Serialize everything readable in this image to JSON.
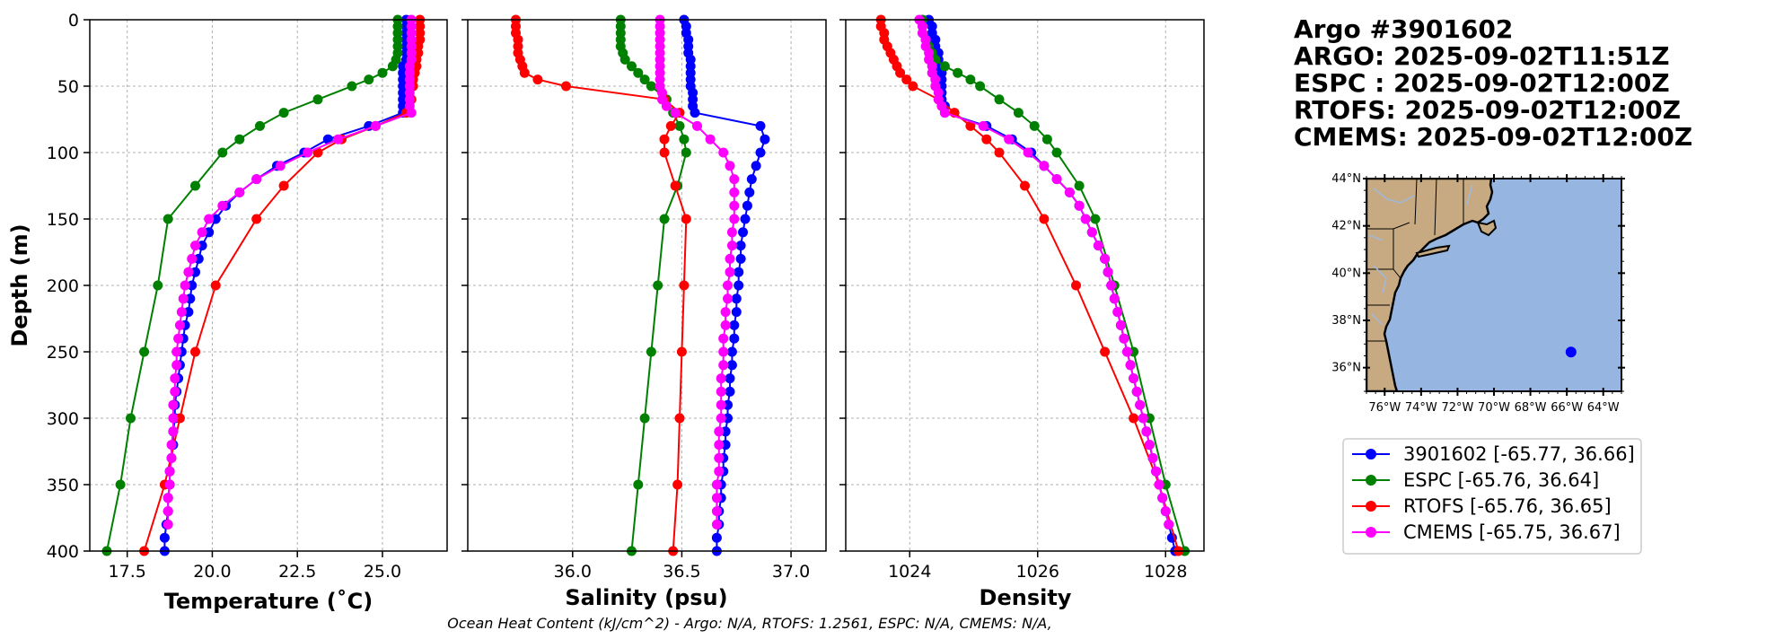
{
  "titles": {
    "line1": "Argo #3901602",
    "line2": "ARGO: 2025-09-02T11:51Z",
    "line3": "ESPC : 2025-09-02T12:00Z",
    "line4": "RTOFS: 2025-09-02T12:00Z",
    "line5": "CMEMS: 2025-09-02T12:00Z"
  },
  "footer": "Ocean Heat Content (kJ/cm^2) - Argo: N/A,  RTOFS: 1.2561,  ESPC: N/A,  CMEMS: N/A,",
  "legend": [
    {
      "label": "3901602 [-65.77, 36.66]",
      "color": "#0000ff"
    },
    {
      "label": "ESPC [-65.76, 36.64]",
      "color": "#008000"
    },
    {
      "label": "RTOFS [-65.76, 36.65]",
      "color": "#ff0000"
    },
    {
      "label": "CMEMS [-65.75, 36.67]",
      "color": "#ff00ff"
    }
  ],
  "map": {
    "lat_labels": [
      "44°N",
      "42°N",
      "40°N",
      "38°N",
      "36°N"
    ],
    "lon_labels": [
      "76°W",
      "74°W",
      "72°W",
      "70°W",
      "68°W",
      "66°W",
      "64°W"
    ],
    "lon_range": [
      -77,
      -63
    ],
    "lat_range": [
      35,
      44
    ],
    "point": {
      "lon": -65.77,
      "lat": 36.66
    },
    "ocean_color": "#96b5e1",
    "land_color": "#c8aa82"
  },
  "chart_data": [
    {
      "type": "line",
      "xlabel": "Temperature (˚C)",
      "ylabel": "Depth (m)",
      "xlim": [
        16.4,
        26.9
      ],
      "ylim": [
        400,
        0
      ],
      "xticks": [
        "17.5",
        "20.0",
        "22.5",
        "25.0"
      ],
      "yticks": [
        "0",
        "50",
        "100",
        "150",
        "200",
        "250",
        "300",
        "350",
        "400"
      ],
      "grid": true,
      "series": [
        {
          "name": "3901602",
          "color": "#0000ff",
          "depth": [
            0,
            5,
            10,
            15,
            20,
            25,
            30,
            35,
            40,
            45,
            50,
            55,
            60,
            65,
            70,
            80,
            90,
            100,
            110,
            120,
            130,
            140,
            150,
            160,
            170,
            180,
            190,
            200,
            210,
            220,
            230,
            240,
            250,
            260,
            270,
            280,
            290,
            300,
            310,
            320,
            330,
            340,
            350,
            360,
            370,
            380,
            390,
            400
          ],
          "values": [
            25.7,
            25.7,
            25.7,
            25.7,
            25.7,
            25.7,
            25.7,
            25.6,
            25.6,
            25.6,
            25.6,
            25.6,
            25.6,
            25.6,
            25.6,
            24.6,
            23.4,
            22.7,
            21.9,
            21.3,
            20.8,
            20.4,
            20.1,
            19.9,
            19.7,
            19.6,
            19.5,
            19.4,
            19.35,
            19.3,
            19.2,
            19.15,
            19.1,
            19.05,
            19.0,
            18.95,
            18.9,
            18.9,
            18.85,
            18.85,
            18.8,
            18.75,
            18.75,
            18.7,
            18.7,
            18.65,
            18.6,
            18.6
          ]
        },
        {
          "name": "ESPC",
          "color": "#008000",
          "depth": [
            0,
            5,
            10,
            15,
            20,
            25,
            30,
            35,
            40,
            45,
            50,
            60,
            70,
            80,
            90,
            100,
            125,
            150,
            200,
            250,
            300,
            350,
            400
          ],
          "values": [
            25.45,
            25.45,
            25.45,
            25.45,
            25.45,
            25.45,
            25.4,
            25.3,
            25.0,
            24.6,
            24.1,
            23.1,
            22.1,
            21.4,
            20.8,
            20.3,
            19.5,
            18.7,
            18.4,
            18.0,
            17.6,
            17.3,
            16.9
          ]
        },
        {
          "name": "RTOFS",
          "color": "#ff0000",
          "depth": [
            0,
            5,
            10,
            15,
            20,
            25,
            30,
            35,
            40,
            45,
            50,
            60,
            70,
            80,
            90,
            100,
            125,
            150,
            200,
            250,
            300,
            350,
            400
          ],
          "values": [
            26.1,
            26.1,
            26.1,
            26.1,
            26.05,
            26.05,
            26.0,
            26.0,
            25.95,
            25.9,
            25.9,
            25.85,
            25.7,
            24.8,
            23.8,
            23.1,
            22.1,
            21.3,
            20.1,
            19.5,
            19.05,
            18.6,
            18.0
          ]
        },
        {
          "name": "CMEMS",
          "color": "#ff00ff",
          "depth": [
            0,
            5,
            10,
            15,
            20,
            25,
            30,
            35,
            40,
            45,
            50,
            55,
            60,
            65,
            70,
            80,
            90,
            100,
            110,
            120,
            130,
            140,
            150,
            160,
            170,
            180,
            190,
            200,
            210,
            220,
            230,
            240,
            250,
            260,
            270,
            280,
            290,
            300,
            310,
            320,
            330,
            340,
            350,
            360,
            370,
            380
          ],
          "values": [
            25.85,
            25.85,
            25.85,
            25.85,
            25.85,
            25.85,
            25.85,
            25.8,
            25.8,
            25.8,
            25.8,
            25.8,
            25.8,
            25.8,
            25.85,
            24.8,
            23.7,
            22.8,
            22.0,
            21.3,
            20.8,
            20.3,
            19.9,
            19.7,
            19.5,
            19.4,
            19.3,
            19.2,
            19.15,
            19.1,
            19.05,
            19.0,
            18.95,
            18.95,
            18.9,
            18.9,
            18.85,
            18.85,
            18.85,
            18.8,
            18.8,
            18.75,
            18.75,
            18.7,
            18.7,
            18.7
          ]
        }
      ]
    },
    {
      "type": "line",
      "xlabel": "Salinity (psu)",
      "xlim": [
        35.52,
        37.16
      ],
      "ylim": [
        400,
        0
      ],
      "xticks": [
        "36.0",
        "36.5",
        "37.0"
      ],
      "grid": true,
      "series": [
        {
          "name": "3901602",
          "color": "#0000ff",
          "depth": [
            0,
            5,
            10,
            15,
            20,
            25,
            30,
            35,
            40,
            45,
            50,
            55,
            60,
            65,
            70,
            80,
            90,
            100,
            110,
            120,
            130,
            140,
            150,
            160,
            170,
            180,
            190,
            200,
            210,
            220,
            230,
            240,
            250,
            260,
            270,
            280,
            290,
            300,
            310,
            320,
            330,
            340,
            350,
            360,
            370,
            380,
            390,
            400
          ],
          "values": [
            36.51,
            36.52,
            36.52,
            36.53,
            36.53,
            36.53,
            36.54,
            36.54,
            36.54,
            36.54,
            36.54,
            36.55,
            36.55,
            36.55,
            36.56,
            36.86,
            36.88,
            36.86,
            36.84,
            36.82,
            36.81,
            36.8,
            36.79,
            36.78,
            36.77,
            36.77,
            36.76,
            36.76,
            36.75,
            36.75,
            36.74,
            36.74,
            36.73,
            36.73,
            36.72,
            36.72,
            36.71,
            36.71,
            36.7,
            36.7,
            36.69,
            36.69,
            36.68,
            36.68,
            36.67,
            36.67,
            36.66,
            36.66
          ]
        },
        {
          "name": "ESPC",
          "color": "#008000",
          "depth": [
            0,
            5,
            10,
            15,
            20,
            25,
            30,
            35,
            40,
            45,
            50,
            60,
            70,
            80,
            90,
            100,
            125,
            150,
            200,
            250,
            300,
            350,
            400
          ],
          "values": [
            36.22,
            36.22,
            36.22,
            36.22,
            36.22,
            36.23,
            36.24,
            36.27,
            36.3,
            36.33,
            36.36,
            36.43,
            36.46,
            36.49,
            36.51,
            36.52,
            36.48,
            36.42,
            36.39,
            36.36,
            36.33,
            36.3,
            36.27
          ]
        },
        {
          "name": "RTOFS",
          "color": "#ff0000",
          "depth": [
            0,
            5,
            10,
            15,
            20,
            25,
            30,
            35,
            40,
            45,
            50,
            60,
            70,
            80,
            90,
            100,
            125,
            150,
            200,
            250,
            300,
            350,
            400
          ],
          "values": [
            35.74,
            35.74,
            35.74,
            35.75,
            35.75,
            35.75,
            35.76,
            35.77,
            35.78,
            35.84,
            35.97,
            36.42,
            36.49,
            36.45,
            36.42,
            36.42,
            36.47,
            36.52,
            36.51,
            36.5,
            36.49,
            36.48,
            36.46
          ]
        },
        {
          "name": "CMEMS",
          "color": "#ff00ff",
          "depth": [
            0,
            5,
            10,
            15,
            20,
            25,
            30,
            35,
            40,
            45,
            50,
            55,
            60,
            65,
            70,
            80,
            90,
            100,
            110,
            120,
            130,
            140,
            150,
            160,
            170,
            180,
            190,
            200,
            210,
            220,
            230,
            240,
            250,
            260,
            270,
            280,
            290,
            300,
            310,
            320,
            330,
            340,
            350,
            360,
            370,
            380
          ],
          "values": [
            36.4,
            36.4,
            36.4,
            36.4,
            36.4,
            36.4,
            36.4,
            36.4,
            36.4,
            36.4,
            36.4,
            36.41,
            36.41,
            36.43,
            36.47,
            36.57,
            36.63,
            36.69,
            36.72,
            36.74,
            36.74,
            36.74,
            36.74,
            36.73,
            36.73,
            36.72,
            36.72,
            36.71,
            36.71,
            36.7,
            36.7,
            36.69,
            36.69,
            36.69,
            36.68,
            36.68,
            36.68,
            36.68,
            36.67,
            36.67,
            36.67,
            36.67,
            36.66,
            36.66,
            36.66,
            36.66
          ]
        }
      ]
    },
    {
      "type": "line",
      "xlabel": "Density",
      "xlim": [
        1023.0,
        1028.6
      ],
      "ylim": [
        400,
        0
      ],
      "xticks": [
        "1024",
        "1026",
        "1028"
      ],
      "grid": true,
      "series": [
        {
          "name": "3901602",
          "color": "#0000ff",
          "depth": [
            0,
            5,
            10,
            15,
            20,
            25,
            30,
            35,
            40,
            45,
            50,
            55,
            60,
            65,
            70,
            80,
            90,
            100,
            110,
            120,
            130,
            140,
            150,
            160,
            170,
            180,
            190,
            200,
            210,
            220,
            230,
            240,
            250,
            260,
            270,
            280,
            290,
            300,
            310,
            320,
            330,
            340,
            350,
            360,
            370,
            380,
            390,
            400
          ],
          "values": [
            1024.3,
            1024.35,
            1024.35,
            1024.4,
            1024.4,
            1024.45,
            1024.45,
            1024.45,
            1024.5,
            1024.5,
            1024.5,
            1024.5,
            1024.5,
            1024.55,
            1024.55,
            1025.2,
            1025.6,
            1025.9,
            1026.1,
            1026.3,
            1026.5,
            1026.65,
            1026.75,
            1026.85,
            1026.95,
            1027.05,
            1027.1,
            1027.15,
            1027.2,
            1027.25,
            1027.3,
            1027.35,
            1027.4,
            1027.45,
            1027.5,
            1027.55,
            1027.6,
            1027.65,
            1027.7,
            1027.75,
            1027.8,
            1027.85,
            1027.9,
            1027.95,
            1028.0,
            1028.05,
            1028.1,
            1028.15
          ]
        },
        {
          "name": "ESPC",
          "color": "#008000",
          "depth": [
            0,
            5,
            10,
            15,
            20,
            25,
            30,
            35,
            40,
            45,
            50,
            60,
            70,
            80,
            90,
            100,
            125,
            150,
            200,
            250,
            300,
            350,
            400
          ],
          "values": [
            1024.2,
            1024.2,
            1024.2,
            1024.25,
            1024.3,
            1024.35,
            1024.4,
            1024.55,
            1024.75,
            1024.95,
            1025.1,
            1025.4,
            1025.7,
            1025.95,
            1026.15,
            1026.3,
            1026.65,
            1026.9,
            1027.2,
            1027.5,
            1027.75,
            1028.0,
            1028.3
          ]
        },
        {
          "name": "RTOFS",
          "color": "#ff0000",
          "depth": [
            0,
            5,
            10,
            15,
            20,
            25,
            30,
            35,
            40,
            45,
            50,
            60,
            70,
            80,
            90,
            100,
            125,
            150,
            200,
            250,
            300,
            350,
            400
          ],
          "values": [
            1023.55,
            1023.55,
            1023.6,
            1023.6,
            1023.65,
            1023.7,
            1023.75,
            1023.8,
            1023.85,
            1023.95,
            1024.05,
            1024.45,
            1024.7,
            1024.95,
            1025.2,
            1025.4,
            1025.8,
            1026.1,
            1026.6,
            1027.05,
            1027.5,
            1027.9,
            1028.2
          ]
        },
        {
          "name": "CMEMS",
          "color": "#ff00ff",
          "depth": [
            0,
            5,
            10,
            15,
            20,
            25,
            30,
            35,
            40,
            45,
            50,
            55,
            60,
            65,
            70,
            80,
            90,
            100,
            110,
            120,
            130,
            140,
            150,
            160,
            170,
            180,
            190,
            200,
            210,
            220,
            230,
            240,
            250,
            260,
            270,
            280,
            290,
            300,
            310,
            320,
            330,
            340,
            350,
            360,
            370,
            380
          ],
          "values": [
            1024.15,
            1024.2,
            1024.2,
            1024.25,
            1024.25,
            1024.3,
            1024.3,
            1024.35,
            1024.35,
            1024.4,
            1024.4,
            1024.45,
            1024.45,
            1024.5,
            1024.55,
            1025.15,
            1025.55,
            1025.85,
            1026.1,
            1026.3,
            1026.5,
            1026.65,
            1026.75,
            1026.85,
            1026.95,
            1027.05,
            1027.1,
            1027.15,
            1027.2,
            1027.25,
            1027.3,
            1027.35,
            1027.4,
            1027.45,
            1027.5,
            1027.55,
            1027.6,
            1027.65,
            1027.7,
            1027.75,
            1027.8,
            1027.85,
            1027.9,
            1027.95,
            1028.0,
            1028.05
          ]
        }
      ]
    }
  ]
}
